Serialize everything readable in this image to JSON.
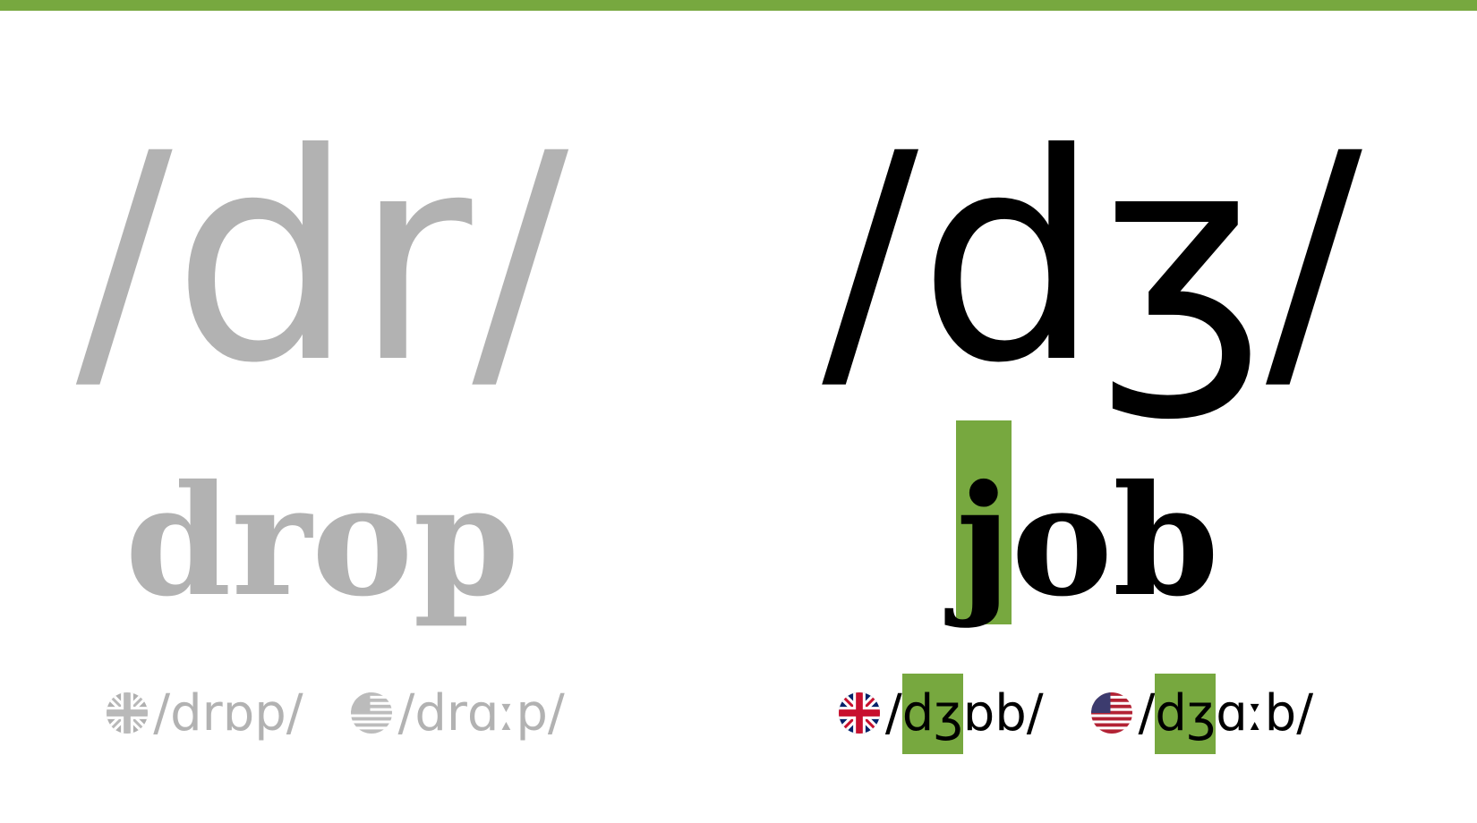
{
  "left": {
    "phoneme": "/dr/",
    "word": "drop",
    "uk": {
      "pron": "/drɒp/"
    },
    "us": {
      "pron": "/drɑːp/"
    }
  },
  "right": {
    "phoneme": "/dʒ/",
    "word": {
      "highlight": "j",
      "rest": "ob"
    },
    "uk": {
      "highlight": "dʒ",
      "pre": "/",
      "post": "ɒb/"
    },
    "us": {
      "highlight": "dʒ",
      "pre": "/",
      "post": "ɑːb/"
    }
  },
  "colors": {
    "accent": "#77a83f",
    "faded_text": "#b2b2b2",
    "active_text": "#000000"
  },
  "icons": {
    "uk": "uk-flag-icon",
    "us": "us-flag-icon"
  }
}
